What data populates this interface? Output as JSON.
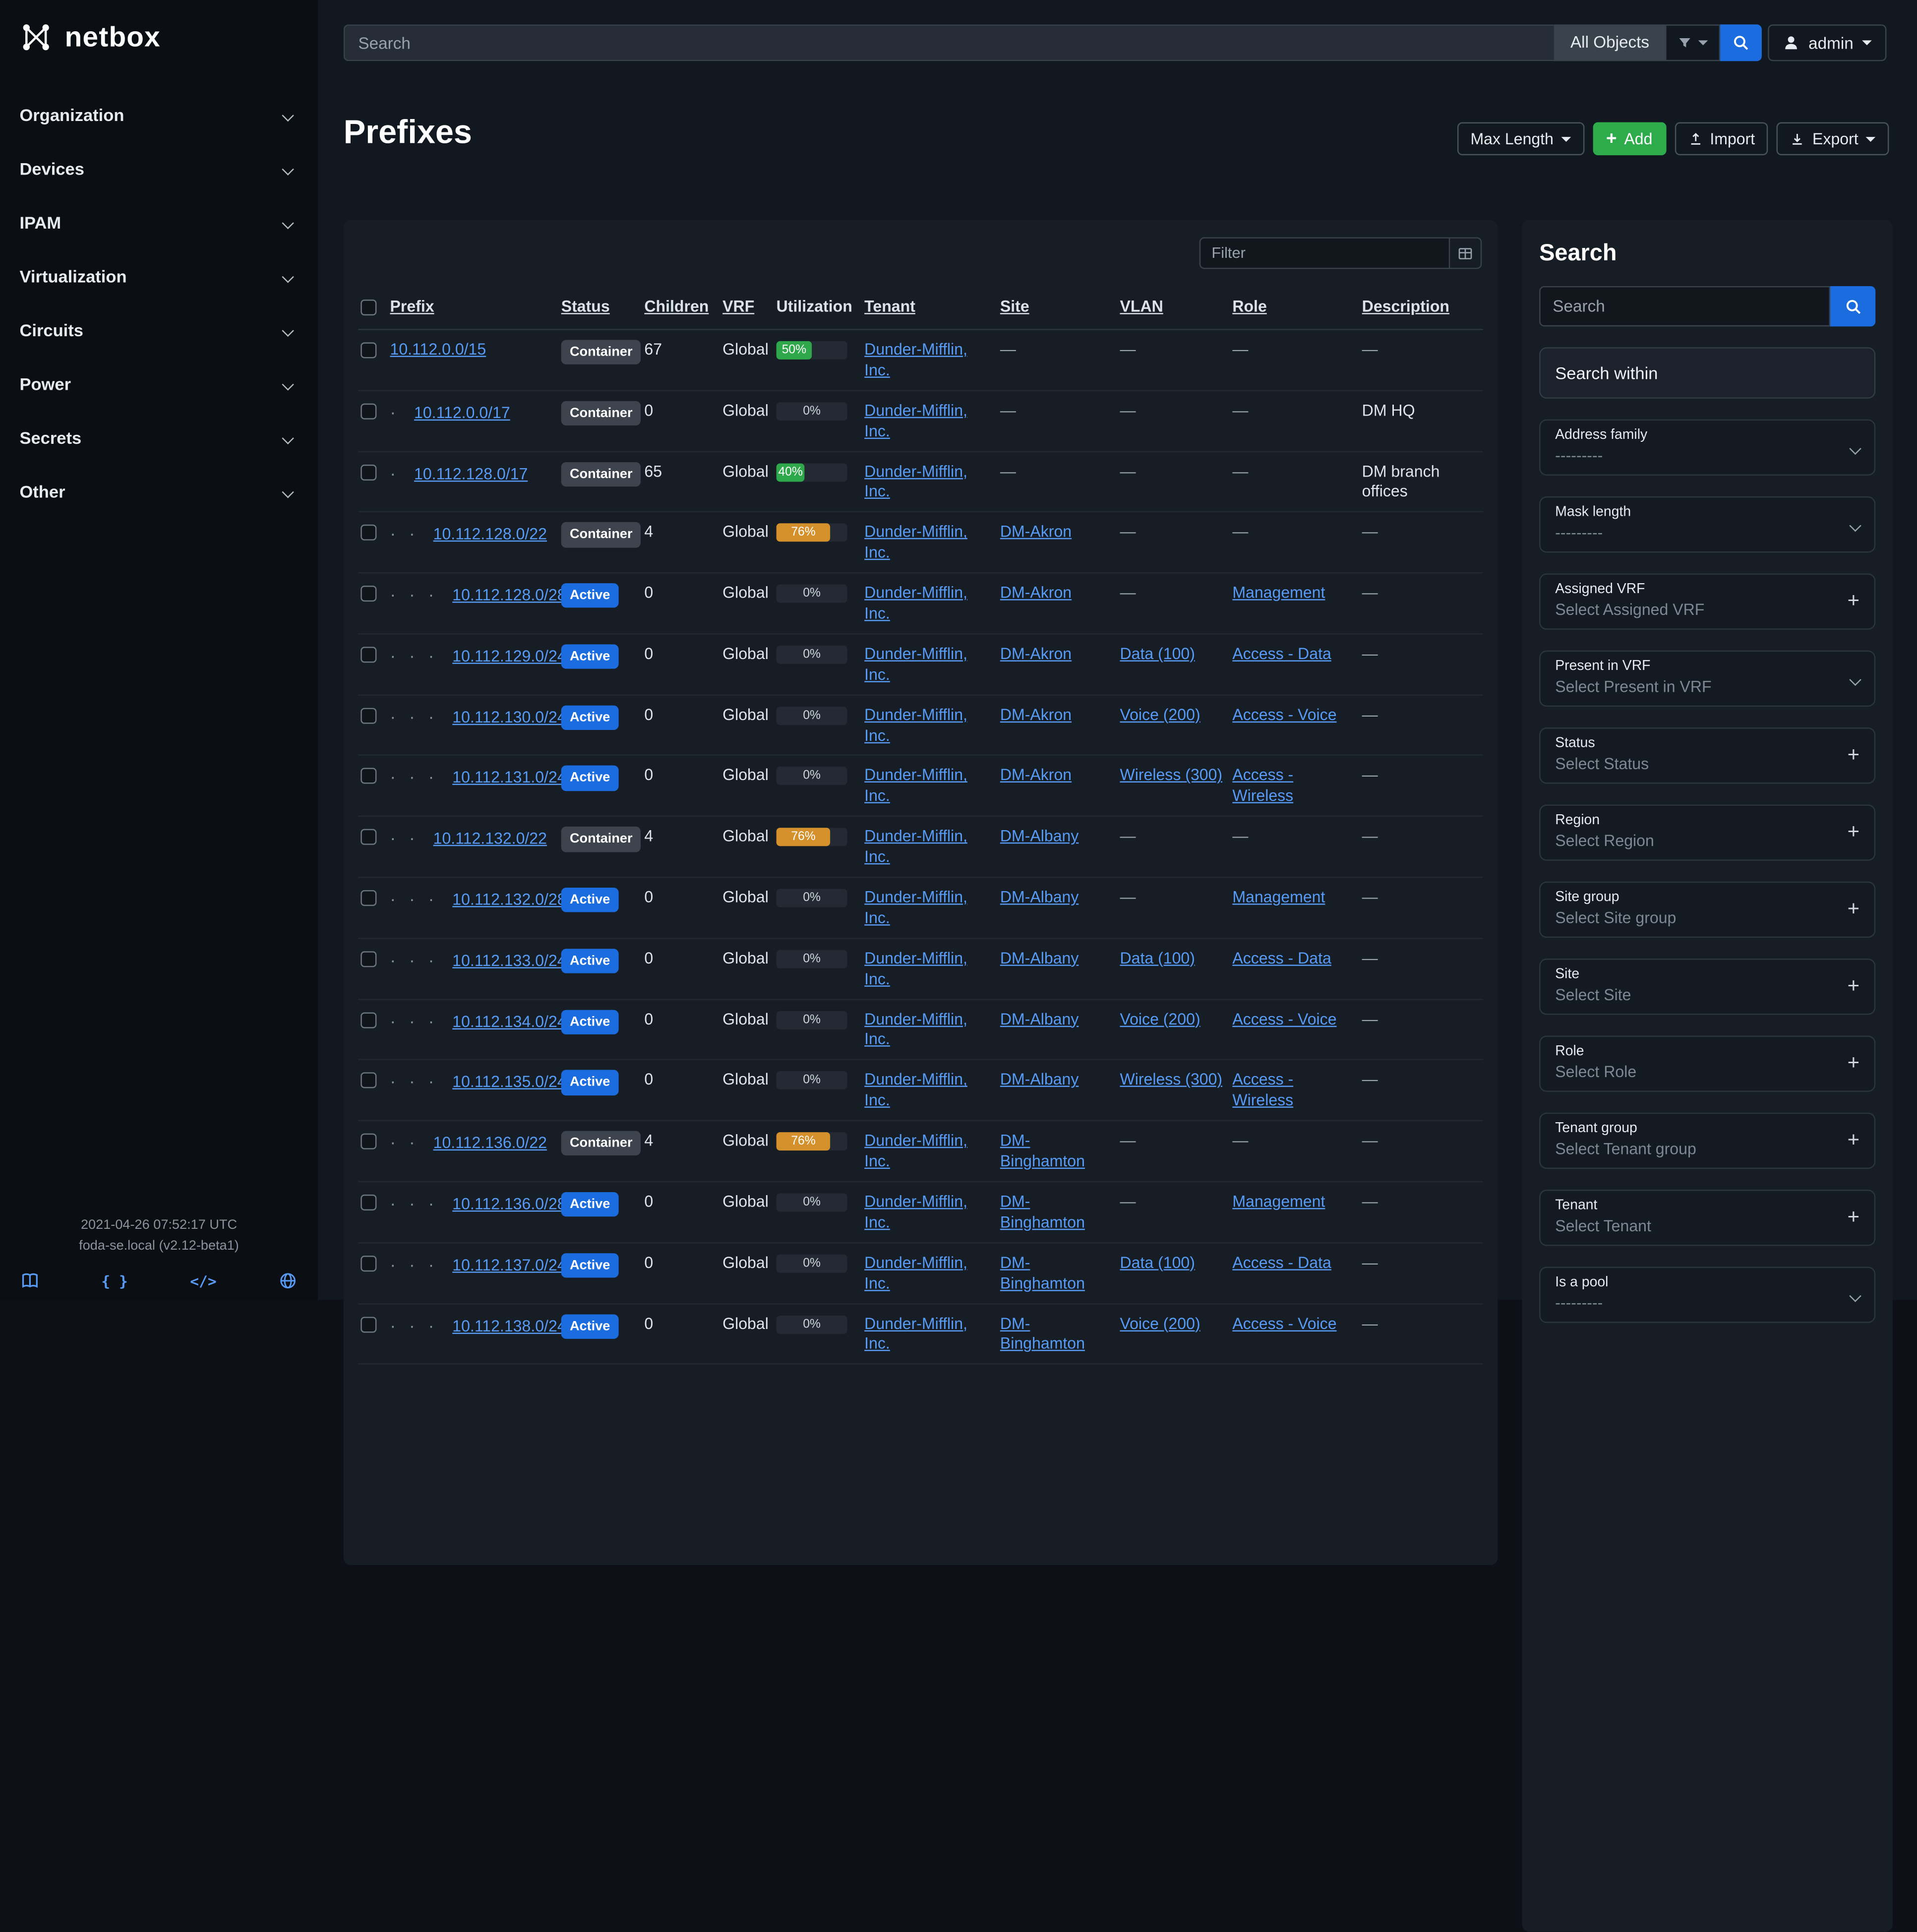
{
  "app": {
    "brand": "netbox"
  },
  "topbar": {
    "search_placeholder": "Search",
    "scope": "All Objects",
    "user": "admin"
  },
  "sidebar": {
    "items": [
      {
        "label": "Organization"
      },
      {
        "label": "Devices"
      },
      {
        "label": "IPAM"
      },
      {
        "label": "Virtualization"
      },
      {
        "label": "Circuits"
      },
      {
        "label": "Power"
      },
      {
        "label": "Secrets"
      },
      {
        "label": "Other"
      }
    ],
    "footer_time": "2021-04-26 07:52:17 UTC",
    "footer_version": "foda-se.local (v2.12-beta1)",
    "footer_icons": [
      "book-icon",
      "braces-icon",
      "code-icon",
      "globe-icon"
    ]
  },
  "page": {
    "title": "Prefixes",
    "actions": {
      "max_length": "Max Length",
      "add": "Add",
      "import": "Import",
      "export": "Export"
    }
  },
  "table": {
    "filter_placeholder": "Filter",
    "columns": [
      "Prefix",
      "Status",
      "Children",
      "VRF",
      "Utilization",
      "Tenant",
      "Site",
      "VLAN",
      "Role",
      "Description"
    ],
    "status_colors": {
      "Container": "#3d444d",
      "Active": "#1b6ddf"
    },
    "util_colors": {
      "low": "#2fa84c",
      "high": "#d4902b"
    },
    "rows": [
      {
        "depth": 0,
        "prefix": "10.112.0.0/15",
        "status": "Container",
        "children": "67",
        "vrf": "Global",
        "utilization": 50,
        "tenant": "Dunder-Mifflin, Inc.",
        "site": "",
        "vlan": "",
        "role": "",
        "description": ""
      },
      {
        "depth": 1,
        "prefix": "10.112.0.0/17",
        "status": "Container",
        "children": "0",
        "vrf": "Global",
        "utilization": 0,
        "tenant": "Dunder-Mifflin, Inc.",
        "site": "",
        "vlan": "",
        "role": "",
        "description": "DM HQ"
      },
      {
        "depth": 1,
        "prefix": "10.112.128.0/17",
        "status": "Container",
        "children": "65",
        "vrf": "Global",
        "utilization": 40,
        "tenant": "Dunder-Mifflin, Inc.",
        "site": "",
        "vlan": "",
        "role": "",
        "description": "DM branch offices"
      },
      {
        "depth": 2,
        "prefix": "10.112.128.0/22",
        "status": "Container",
        "children": "4",
        "vrf": "Global",
        "utilization": 76,
        "tenant": "Dunder-Mifflin, Inc.",
        "site": "DM-Akron",
        "vlan": "",
        "role": "",
        "description": ""
      },
      {
        "depth": 3,
        "prefix": "10.112.128.0/28",
        "status": "Active",
        "children": "0",
        "vrf": "Global",
        "utilization": 0,
        "tenant": "Dunder-Mifflin, Inc.",
        "site": "DM-Akron",
        "vlan": "",
        "role": "Management",
        "description": ""
      },
      {
        "depth": 3,
        "prefix": "10.112.129.0/24",
        "status": "Active",
        "children": "0",
        "vrf": "Global",
        "utilization": 0,
        "tenant": "Dunder-Mifflin, Inc.",
        "site": "DM-Akron",
        "vlan": "Data (100)",
        "role": "Access - Data",
        "description": ""
      },
      {
        "depth": 3,
        "prefix": "10.112.130.0/24",
        "status": "Active",
        "children": "0",
        "vrf": "Global",
        "utilization": 0,
        "tenant": "Dunder-Mifflin, Inc.",
        "site": "DM-Akron",
        "vlan": "Voice (200)",
        "role": "Access - Voice",
        "description": ""
      },
      {
        "depth": 3,
        "prefix": "10.112.131.0/24",
        "status": "Active",
        "children": "0",
        "vrf": "Global",
        "utilization": 0,
        "tenant": "Dunder-Mifflin, Inc.",
        "site": "DM-Akron",
        "vlan": "Wireless (300)",
        "role": "Access - Wireless",
        "description": ""
      },
      {
        "depth": 2,
        "prefix": "10.112.132.0/22",
        "status": "Container",
        "children": "4",
        "vrf": "Global",
        "utilization": 76,
        "tenant": "Dunder-Mifflin, Inc.",
        "site": "DM-Albany",
        "vlan": "",
        "role": "",
        "description": ""
      },
      {
        "depth": 3,
        "prefix": "10.112.132.0/28",
        "status": "Active",
        "children": "0",
        "vrf": "Global",
        "utilization": 0,
        "tenant": "Dunder-Mifflin, Inc.",
        "site": "DM-Albany",
        "vlan": "",
        "role": "Management",
        "description": ""
      },
      {
        "depth": 3,
        "prefix": "10.112.133.0/24",
        "status": "Active",
        "children": "0",
        "vrf": "Global",
        "utilization": 0,
        "tenant": "Dunder-Mifflin, Inc.",
        "site": "DM-Albany",
        "vlan": "Data (100)",
        "role": "Access - Data",
        "description": ""
      },
      {
        "depth": 3,
        "prefix": "10.112.134.0/24",
        "status": "Active",
        "children": "0",
        "vrf": "Global",
        "utilization": 0,
        "tenant": "Dunder-Mifflin, Inc.",
        "site": "DM-Albany",
        "vlan": "Voice (200)",
        "role": "Access - Voice",
        "description": ""
      },
      {
        "depth": 3,
        "prefix": "10.112.135.0/24",
        "status": "Active",
        "children": "0",
        "vrf": "Global",
        "utilization": 0,
        "tenant": "Dunder-Mifflin, Inc.",
        "site": "DM-Albany",
        "vlan": "Wireless (300)",
        "role": "Access - Wireless",
        "description": ""
      },
      {
        "depth": 2,
        "prefix": "10.112.136.0/22",
        "status": "Container",
        "children": "4",
        "vrf": "Global",
        "utilization": 76,
        "tenant": "Dunder-Mifflin, Inc.",
        "site": "DM-Binghamton",
        "vlan": "",
        "role": "",
        "description": ""
      },
      {
        "depth": 3,
        "prefix": "10.112.136.0/28",
        "status": "Active",
        "children": "0",
        "vrf": "Global",
        "utilization": 0,
        "tenant": "Dunder-Mifflin, Inc.",
        "site": "DM-Binghamton",
        "vlan": "",
        "role": "Management",
        "description": ""
      },
      {
        "depth": 3,
        "prefix": "10.112.137.0/24",
        "status": "Active",
        "children": "0",
        "vrf": "Global",
        "utilization": 0,
        "tenant": "Dunder-Mifflin, Inc.",
        "site": "DM-Binghamton",
        "vlan": "Data (100)",
        "role": "Access - Data",
        "description": ""
      },
      {
        "depth": 3,
        "prefix": "10.112.138.0/24",
        "status": "Active",
        "children": "0",
        "vrf": "Global",
        "utilization": 0,
        "tenant": "Dunder-Mifflin, Inc.",
        "site": "DM-Binghamton",
        "vlan": "Voice (200)",
        "role": "Access - Voice",
        "description": ""
      }
    ]
  },
  "panel": {
    "title": "Search",
    "search_placeholder": "Search",
    "search_within": "Search within",
    "fields": [
      {
        "label": "Address family",
        "value": "---------",
        "control": "select"
      },
      {
        "label": "Mask length",
        "value": "---------",
        "control": "select"
      },
      {
        "label": "Assigned VRF",
        "value": "Select Assigned VRF",
        "control": "add"
      },
      {
        "label": "Present in VRF",
        "value": "Select Present in VRF",
        "control": "select"
      },
      {
        "label": "Status",
        "value": "Select Status",
        "control": "add"
      },
      {
        "label": "Region",
        "value": "Select Region",
        "control": "add"
      },
      {
        "label": "Site group",
        "value": "Select Site group",
        "control": "add"
      },
      {
        "label": "Site",
        "value": "Select Site",
        "control": "add"
      },
      {
        "label": "Role",
        "value": "Select Role",
        "control": "add"
      },
      {
        "label": "Tenant group",
        "value": "Select Tenant group",
        "control": "add"
      },
      {
        "label": "Tenant",
        "value": "Select Tenant",
        "control": "add"
      },
      {
        "label": "Is a pool",
        "value": "---------",
        "control": "select"
      }
    ]
  },
  "theme": {
    "link": "#579bf5",
    "primary_blue": "#1b6ddf",
    "green": "#2eab4b",
    "page_bg": "#12181f",
    "card_bg": "#171d25",
    "sidebar_bg": "#0b0e13"
  }
}
